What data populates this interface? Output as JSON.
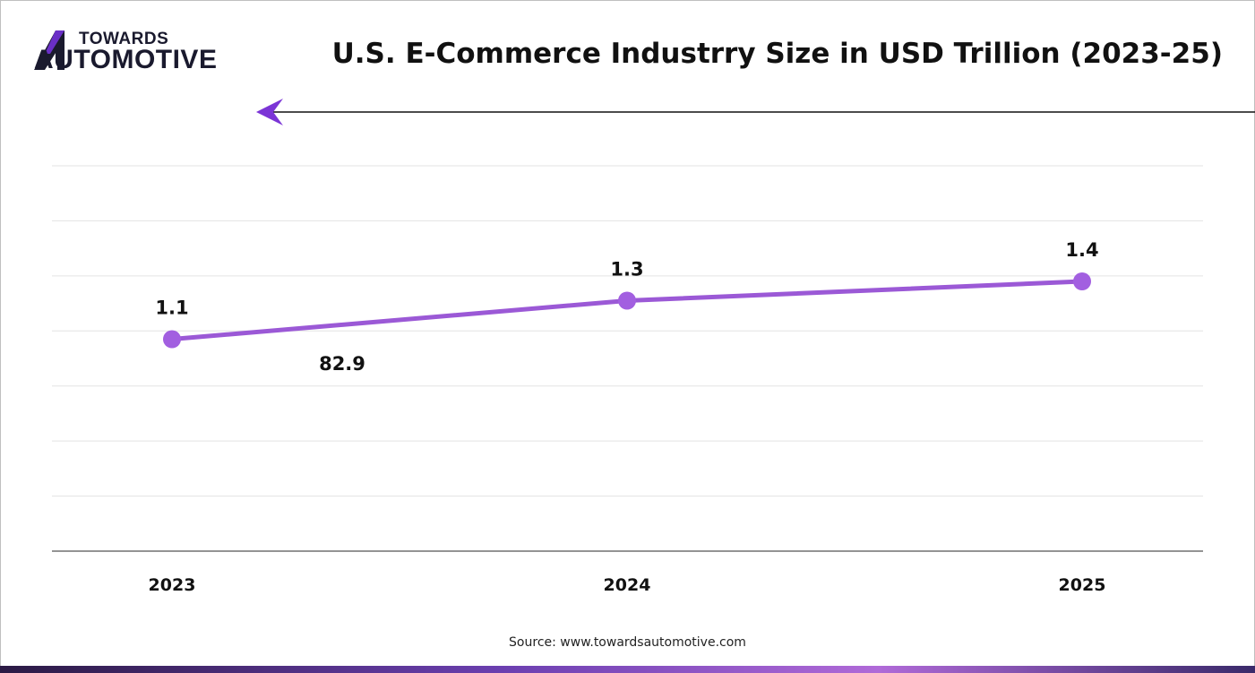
{
  "header": {
    "logo_line1": "TOWARDS",
    "logo_line2": "AUTOMOTIVE",
    "title": "U.S. E-Commerce Industrry Size in USD Trillion (2023-25)"
  },
  "footer": {
    "source": "Source: www.towardsautomotive.com"
  },
  "annotation": {
    "text": "82.9"
  },
  "colors": {
    "line": "#9b59d6",
    "marker": "#a25fe0",
    "brand": "#6a2fc7",
    "grid": "#e3e3e3",
    "axis": "#555555"
  },
  "chart_data": {
    "type": "line",
    "categories": [
      "2023",
      "2024",
      "2025"
    ],
    "series": [
      {
        "values": [
          1.1,
          1.3,
          1.4
        ],
        "labels": [
          "1.1",
          "1.3",
          "1.4"
        ]
      }
    ],
    "title": "U.S. E-Commerce Industrry Size in USD Trillion (2023-25)",
    "xlabel": "",
    "ylabel": "",
    "ylim": [
      0,
      2.0
    ],
    "grid": true,
    "legend": "none"
  }
}
